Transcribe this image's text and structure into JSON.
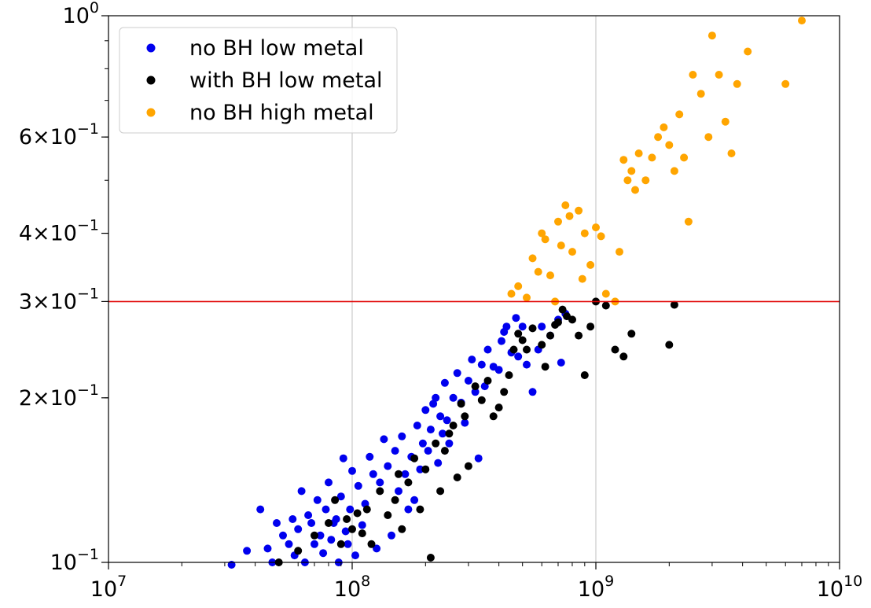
{
  "chart_data": {
    "type": "scatter",
    "title": "",
    "xlabel": "",
    "ylabel": "",
    "xscale": "log",
    "yscale": "log",
    "xlim": [
      10000000,
      10000000000
    ],
    "ylim": [
      0.1,
      1.0
    ],
    "grid": "vertical major gridlines at x decades",
    "legend_position": "top-left",
    "x_ticks": [
      {
        "value": 10000000,
        "base": "10",
        "exp": "7"
      },
      {
        "value": 100000000,
        "base": "10",
        "exp": "8"
      },
      {
        "value": 1000000000,
        "base": "10",
        "exp": "9"
      },
      {
        "value": 10000000000,
        "base": "10",
        "exp": "10"
      }
    ],
    "y_ticks": [
      {
        "value": 0.1,
        "mant": "",
        "base": "10",
        "exp": "−1"
      },
      {
        "value": 0.2,
        "mant": "2×",
        "base": "10",
        "exp": "−1"
      },
      {
        "value": 0.3,
        "mant": "3×",
        "base": "10",
        "exp": "−1"
      },
      {
        "value": 0.4,
        "mant": "4×",
        "base": "10",
        "exp": "−1"
      },
      {
        "value": 0.6,
        "mant": "6×",
        "base": "10",
        "exp": "−1"
      },
      {
        "value": 1.0,
        "mant": "",
        "base": "10",
        "exp": "0"
      }
    ],
    "reference_lines": [
      {
        "orientation": "horizontal",
        "y": 0.3,
        "color": "#e00000"
      }
    ],
    "series": [
      {
        "name": "no BH low metal",
        "color": "#0000ee",
        "points": [
          [
            32000000,
            0.099
          ],
          [
            37000000,
            0.105
          ],
          [
            42000000,
            0.125
          ],
          [
            45000000,
            0.106
          ],
          [
            47000000,
            0.1
          ],
          [
            49000000,
            0.118
          ],
          [
            52000000,
            0.112
          ],
          [
            55000000,
            0.108
          ],
          [
            57000000,
            0.12
          ],
          [
            58000000,
            0.103
          ],
          [
            60000000,
            0.115
          ],
          [
            62000000,
            0.135
          ],
          [
            64000000,
            0.1
          ],
          [
            66000000,
            0.122
          ],
          [
            68000000,
            0.118
          ],
          [
            70000000,
            0.108
          ],
          [
            72000000,
            0.13
          ],
          [
            74000000,
            0.112
          ],
          [
            76000000,
            0.104
          ],
          [
            78000000,
            0.125
          ],
          [
            80000000,
            0.14
          ],
          [
            82000000,
            0.11
          ],
          [
            84000000,
            0.118
          ],
          [
            86000000,
            0.12
          ],
          [
            88000000,
            0.1
          ],
          [
            90000000,
            0.132
          ],
          [
            92000000,
            0.155
          ],
          [
            94000000,
            0.114
          ],
          [
            96000000,
            0.108
          ],
          [
            98000000,
            0.125
          ],
          [
            100000000,
            0.147
          ],
          [
            103000000,
            0.103
          ],
          [
            106000000,
            0.138
          ],
          [
            110000000,
            0.117
          ],
          [
            113000000,
            0.128
          ],
          [
            118000000,
            0.156
          ],
          [
            122000000,
            0.145
          ],
          [
            126000000,
            0.106
          ],
          [
            130000000,
            0.14
          ],
          [
            135000000,
            0.168
          ],
          [
            140000000,
            0.15
          ],
          [
            145000000,
            0.112
          ],
          [
            150000000,
            0.16
          ],
          [
            155000000,
            0.135
          ],
          [
            160000000,
            0.17
          ],
          [
            165000000,
            0.145
          ],
          [
            170000000,
            0.125
          ],
          [
            175000000,
            0.156
          ],
          [
            180000000,
            0.13
          ],
          [
            185000000,
            0.178
          ],
          [
            190000000,
            0.148
          ],
          [
            195000000,
            0.165
          ],
          [
            200000000,
            0.19
          ],
          [
            205000000,
            0.16
          ],
          [
            210000000,
            0.175
          ],
          [
            215000000,
            0.195
          ],
          [
            220000000,
            0.2
          ],
          [
            225000000,
            0.152
          ],
          [
            230000000,
            0.185
          ],
          [
            235000000,
            0.172
          ],
          [
            240000000,
            0.213
          ],
          [
            245000000,
            0.182
          ],
          [
            250000000,
            0.165
          ],
          [
            260000000,
            0.2
          ],
          [
            270000000,
            0.222
          ],
          [
            280000000,
            0.196
          ],
          [
            290000000,
            0.18
          ],
          [
            300000000,
            0.215
          ],
          [
            310000000,
            0.235
          ],
          [
            320000000,
            0.205
          ],
          [
            330000000,
            0.155
          ],
          [
            340000000,
            0.23
          ],
          [
            350000000,
            0.21
          ],
          [
            360000000,
            0.245
          ],
          [
            380000000,
            0.228
          ],
          [
            400000000,
            0.225
          ],
          [
            410000000,
            0.254
          ],
          [
            420000000,
            0.264
          ],
          [
            430000000,
            0.27
          ],
          [
            450000000,
            0.242
          ],
          [
            470000000,
            0.28
          ],
          [
            480000000,
            0.238
          ],
          [
            500000000,
            0.27
          ],
          [
            520000000,
            0.23
          ],
          [
            550000000,
            0.205
          ],
          [
            580000000,
            0.245
          ],
          [
            600000000,
            0.27
          ],
          [
            650000000,
            0.26
          ],
          [
            700000000,
            0.278
          ],
          [
            720000000,
            0.232
          ],
          [
            750000000,
            0.285
          ]
        ]
      },
      {
        "name": "with BH low metal",
        "color": "#000000",
        "points": [
          [
            50000000,
            0.1
          ],
          [
            60000000,
            0.105
          ],
          [
            70000000,
            0.112
          ],
          [
            80000000,
            0.118
          ],
          [
            85000000,
            0.13
          ],
          [
            90000000,
            0.108
          ],
          [
            95000000,
            0.12
          ],
          [
            100000000,
            0.115
          ],
          [
            105000000,
            0.123
          ],
          [
            110000000,
            0.113
          ],
          [
            115000000,
            0.125
          ],
          [
            120000000,
            0.108
          ],
          [
            130000000,
            0.135
          ],
          [
            140000000,
            0.122
          ],
          [
            150000000,
            0.13
          ],
          [
            155000000,
            0.145
          ],
          [
            160000000,
            0.115
          ],
          [
            170000000,
            0.14
          ],
          [
            180000000,
            0.155
          ],
          [
            190000000,
            0.125
          ],
          [
            200000000,
            0.148
          ],
          [
            210000000,
            0.102
          ],
          [
            220000000,
            0.165
          ],
          [
            230000000,
            0.135
          ],
          [
            240000000,
            0.16
          ],
          [
            250000000,
            0.172
          ],
          [
            260000000,
            0.178
          ],
          [
            270000000,
            0.143
          ],
          [
            280000000,
            0.195
          ],
          [
            290000000,
            0.185
          ],
          [
            300000000,
            0.15
          ],
          [
            320000000,
            0.21
          ],
          [
            340000000,
            0.198
          ],
          [
            360000000,
            0.215
          ],
          [
            380000000,
            0.185
          ],
          [
            400000000,
            0.192
          ],
          [
            420000000,
            0.205
          ],
          [
            440000000,
            0.22
          ],
          [
            460000000,
            0.245
          ],
          [
            480000000,
            0.262
          ],
          [
            500000000,
            0.255
          ],
          [
            520000000,
            0.245
          ],
          [
            550000000,
            0.268
          ],
          [
            600000000,
            0.25
          ],
          [
            620000000,
            0.228
          ],
          [
            650000000,
            0.26
          ],
          [
            680000000,
            0.272
          ],
          [
            700000000,
            0.275
          ],
          [
            730000000,
            0.29
          ],
          [
            760000000,
            0.282
          ],
          [
            800000000,
            0.278
          ],
          [
            850000000,
            0.26
          ],
          [
            900000000,
            0.22
          ],
          [
            950000000,
            0.27
          ],
          [
            1000000000,
            0.3
          ],
          [
            1100000000,
            0.295
          ],
          [
            1200000000,
            0.245
          ],
          [
            1300000000,
            0.238
          ],
          [
            1400000000,
            0.262
          ],
          [
            2000000000,
            0.25
          ],
          [
            2100000000,
            0.296
          ]
        ]
      },
      {
        "name": "no BH high metal",
        "color": "#ffa500",
        "points": [
          [
            450000000,
            0.31
          ],
          [
            480000000,
            0.32
          ],
          [
            520000000,
            0.305
          ],
          [
            550000000,
            0.36
          ],
          [
            580000000,
            0.34
          ],
          [
            600000000,
            0.4
          ],
          [
            620000000,
            0.39
          ],
          [
            650000000,
            0.335
          ],
          [
            680000000,
            0.3
          ],
          [
            700000000,
            0.42
          ],
          [
            720000000,
            0.38
          ],
          [
            750000000,
            0.45
          ],
          [
            780000000,
            0.43
          ],
          [
            800000000,
            0.37
          ],
          [
            850000000,
            0.44
          ],
          [
            880000000,
            0.33
          ],
          [
            900000000,
            0.4
          ],
          [
            950000000,
            0.35
          ],
          [
            1000000000,
            0.41
          ],
          [
            1050000000,
            0.395
          ],
          [
            1100000000,
            0.31
          ],
          [
            1200000000,
            0.3
          ],
          [
            1250000000,
            0.37
          ],
          [
            1300000000,
            0.545
          ],
          [
            1350000000,
            0.5
          ],
          [
            1400000000,
            0.52
          ],
          [
            1450000000,
            0.48
          ],
          [
            1500000000,
            0.56
          ],
          [
            1600000000,
            0.5
          ],
          [
            1700000000,
            0.55
          ],
          [
            1800000000,
            0.6
          ],
          [
            1900000000,
            0.625
          ],
          [
            2000000000,
            0.58
          ],
          [
            2100000000,
            0.52
          ],
          [
            2200000000,
            0.66
          ],
          [
            2300000000,
            0.55
          ],
          [
            2400000000,
            0.42
          ],
          [
            2500000000,
            0.78
          ],
          [
            2700000000,
            0.72
          ],
          [
            2900000000,
            0.6
          ],
          [
            3000000000,
            0.92
          ],
          [
            3200000000,
            0.78
          ],
          [
            3400000000,
            0.64
          ],
          [
            3600000000,
            0.56
          ],
          [
            3800000000,
            0.75
          ],
          [
            4200000000,
            0.86
          ],
          [
            6000000000,
            0.75
          ],
          [
            7000000000,
            0.98
          ]
        ]
      }
    ]
  }
}
